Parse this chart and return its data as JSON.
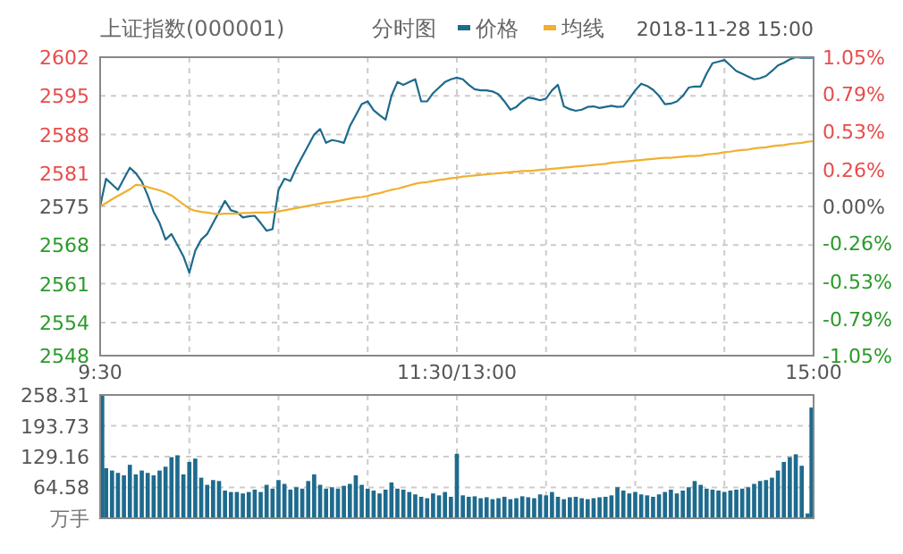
{
  "chart_data": [
    {
      "type": "line",
      "title": "上证指数(000001)",
      "subtitle": "分时图",
      "annotations": [
        "2018-11-28 15:00"
      ],
      "legend": "top",
      "grid": true,
      "categories": [
        "9:30",
        null,
        null,
        null,
        null,
        null,
        null,
        null,
        null,
        null,
        null,
        null,
        null,
        null,
        null,
        null,
        null,
        null,
        null,
        null,
        null,
        null,
        null,
        null,
        null,
        null,
        null,
        null,
        null,
        null,
        null,
        null,
        null,
        null,
        null,
        null,
        null,
        null,
        null,
        null,
        null,
        null,
        null,
        null,
        null,
        null,
        null,
        null,
        null,
        null,
        null,
        null,
        null,
        null,
        null,
        null,
        null,
        null,
        null,
        null,
        "11:30/13:00",
        null,
        null,
        null,
        null,
        null,
        null,
        null,
        null,
        null,
        null,
        null,
        null,
        null,
        null,
        null,
        null,
        null,
        null,
        null,
        null,
        null,
        null,
        null,
        null,
        null,
        null,
        null,
        null,
        null,
        null,
        null,
        null,
        null,
        null,
        null,
        null,
        null,
        null,
        null,
        null,
        null,
        null,
        null,
        null,
        null,
        null,
        null,
        null,
        null,
        null,
        null,
        null,
        null,
        null,
        null,
        null,
        null,
        null,
        null,
        "15:00"
      ],
      "ylim": [
        2548,
        2602
      ],
      "yticks": [
        2548,
        2554,
        2561,
        2568,
        2575,
        2581,
        2588,
        2595,
        2602
      ],
      "y2lim": [
        -1.05,
        1.05
      ],
      "y2ticks": [
        {
          "value": -1.05,
          "label": "-1.05%"
        },
        {
          "value": -0.79,
          "label": "-0.79%"
        },
        {
          "value": -0.53,
          "label": "-0.53%"
        },
        {
          "value": -0.26,
          "label": "-0.26%"
        },
        {
          "value": 0,
          "label": "0.00%"
        },
        {
          "value": 0.26,
          "label": "0.26%"
        },
        {
          "value": 0.53,
          "label": "0.53%"
        },
        {
          "value": 0.79,
          "label": "0.79%"
        },
        {
          "value": 1.05,
          "label": "1.05%"
        }
      ],
      "series": [
        {
          "name": "价格",
          "color": "#1d6a8c",
          "values": [
            2575,
            2580,
            2579,
            2578,
            2580,
            2582,
            2581,
            2579.5,
            2577,
            2574,
            2572,
            2569,
            2570,
            2568,
            2566,
            2563,
            2567,
            2569,
            2570,
            2572,
            2574,
            2576,
            2574.3,
            2574,
            2573,
            2573.2,
            2573.3,
            2572,
            2570.6,
            2570.9,
            2578,
            2580,
            2579.6,
            2582,
            2584,
            2586,
            2588,
            2589,
            2586.5,
            2587,
            2586.8,
            2586.5,
            2589.5,
            2591.5,
            2593.5,
            2594,
            2592.4,
            2591.5,
            2590.7,
            2595,
            2597.5,
            2597,
            2597.5,
            2598,
            2594,
            2594,
            2595.5,
            2596.5,
            2597.5,
            2598,
            2598.3,
            2598,
            2597,
            2596.2,
            2596,
            2596,
            2595.8,
            2595.3,
            2594,
            2592.5,
            2593,
            2594,
            2594.7,
            2594.5,
            2594.2,
            2594.5,
            2596,
            2597,
            2593.1,
            2592.6,
            2592.3,
            2592.5,
            2593,
            2593.1,
            2592.8,
            2593,
            2593.2,
            2593,
            2593.1,
            2594.5,
            2596,
            2597.2,
            2596.8,
            2596.1,
            2595,
            2593.5,
            2593.6,
            2594,
            2595,
            2596.5,
            2596.7,
            2596.7,
            2599,
            2600.9,
            2601.2,
            2601.5,
            2600.5,
            2599.5,
            2599,
            2598.5,
            2598,
            2598.2,
            2598.6,
            2599.5,
            2600.5,
            2601,
            2601.6,
            2602,
            2601.9,
            2601.9,
            2601.9
          ]
        },
        {
          "name": "均线",
          "color": "#f0b030",
          "values": [
            2575,
            2575.6,
            2576.3,
            2576.9,
            2577.5,
            2578.1,
            2578.9,
            2578.8,
            2578.5,
            2578.2,
            2577.9,
            2577.5,
            2577,
            2576.2,
            2575.4,
            2574.6,
            2574.2,
            2574,
            2573.9,
            2573.7,
            2573.6,
            2573.7,
            2573.7,
            2573.7,
            2573.8,
            2573.8,
            2573.9,
            2573.9,
            2573.9,
            2574,
            2574.1,
            2574.3,
            2574.5,
            2574.7,
            2574.9,
            2575.1,
            2575.3,
            2575.5,
            2575.7,
            2575.8,
            2576,
            2576.2,
            2576.4,
            2576.6,
            2576.7,
            2576.9,
            2577.2,
            2577.4,
            2577.7,
            2578,
            2578.2,
            2578.5,
            2578.8,
            2579.1,
            2579.3,
            2579.4,
            2579.6,
            2579.8,
            2579.9,
            2580.1,
            2580.2,
            2580.4,
            2580.5,
            2580.6,
            2580.7,
            2580.8,
            2580.9,
            2581,
            2581.1,
            2581.2,
            2581.3,
            2581.4,
            2581.4,
            2581.5,
            2581.6,
            2581.7,
            2581.8,
            2581.9,
            2582,
            2582.1,
            2582.2,
            2582.3,
            2582.4,
            2582.5,
            2582.6,
            2582.7,
            2582.9,
            2583,
            2583.1,
            2583.2,
            2583.3,
            2583.4,
            2583.5,
            2583.6,
            2583.7,
            2583.8,
            2583.8,
            2583.9,
            2584,
            2584.1,
            2584.1,
            2584.2,
            2584.4,
            2584.5,
            2584.6,
            2584.8,
            2584.9,
            2585.1,
            2585.2,
            2585.3,
            2585.5,
            2585.6,
            2585.7,
            2585.9,
            2586,
            2586.1,
            2586.3,
            2586.4,
            2586.5,
            2586.7,
            2586.8
          ]
        }
      ]
    },
    {
      "type": "bar",
      "ylabel": "万手",
      "grid": true,
      "tick_labels": "y",
      "color": "#1e6b8e",
      "categories": [
        null,
        null,
        null,
        null,
        null,
        null,
        null,
        null,
        null,
        null,
        null,
        null,
        null,
        null,
        null,
        null,
        null,
        null,
        null,
        null,
        null,
        null,
        null,
        null,
        null,
        null,
        null,
        null,
        null,
        null,
        null,
        null,
        null,
        null,
        null,
        null,
        null,
        null,
        null,
        null,
        null,
        null,
        null,
        null,
        null,
        null,
        null,
        null,
        null,
        null,
        null,
        null,
        null,
        null,
        null,
        null,
        null,
        null,
        null,
        null,
        null,
        null,
        null,
        null,
        null,
        null,
        null,
        null,
        null,
        null,
        null,
        null,
        null,
        null,
        null,
        null,
        null,
        null,
        null,
        null,
        null,
        null,
        null,
        null,
        null,
        null,
        null,
        null,
        null,
        null,
        null,
        null,
        null,
        null,
        null,
        null,
        null,
        null,
        null,
        null,
        null,
        null,
        null,
        null,
        null,
        null,
        null,
        null,
        null,
        null,
        null,
        null,
        null,
        null,
        null,
        null,
        null,
        null,
        null,
        null,
        null
      ],
      "ylim": [
        0,
        258.31
      ],
      "yticks": [
        64.58,
        129.16,
        193.73,
        258.31
      ],
      "values": [
        258,
        105,
        100,
        95,
        90,
        112,
        92,
        100,
        95,
        90,
        100,
        108,
        128,
        132,
        92,
        118,
        125,
        85,
        70,
        80,
        78,
        58,
        55,
        55,
        52,
        55,
        60,
        55,
        70,
        62,
        80,
        72,
        60,
        65,
        62,
        78,
        92,
        70,
        62,
        65,
        62,
        68,
        72,
        90,
        70,
        62,
        58,
        52,
        60,
        75,
        62,
        60,
        55,
        50,
        45,
        42,
        52,
        48,
        55,
        45,
        135,
        48,
        45,
        46,
        42,
        44,
        40,
        42,
        45,
        40,
        42,
        46,
        44,
        42,
        50,
        48,
        55,
        45,
        40,
        44,
        45,
        42,
        40,
        42,
        44,
        45,
        48,
        65,
        58,
        52,
        55,
        50,
        48,
        45,
        50,
        55,
        60,
        52,
        58,
        65,
        78,
        70,
        62,
        60,
        58,
        55,
        58,
        60,
        62,
        65,
        72,
        78,
        80,
        85,
        100,
        118,
        128,
        134,
        110,
        10,
        232
      ]
    }
  ]
}
